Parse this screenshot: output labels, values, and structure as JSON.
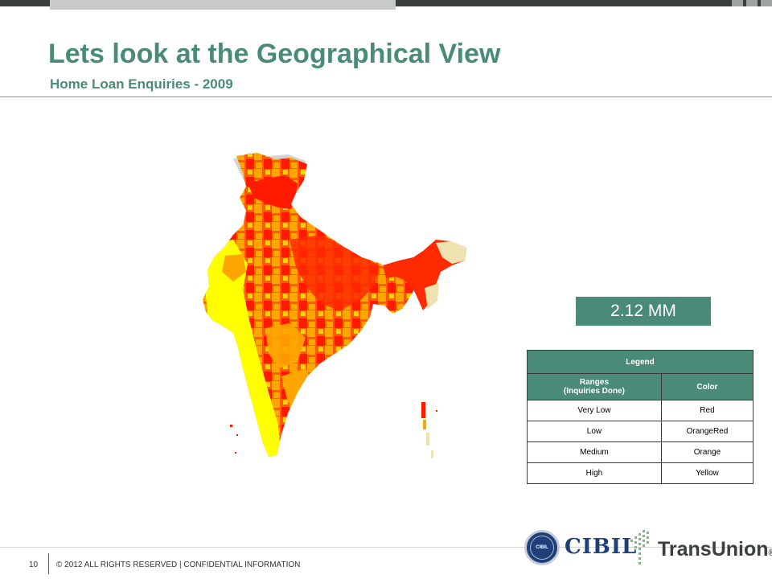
{
  "header": {
    "title": "Lets look at the Geographical View",
    "subtitle": "Home Loan Enquiries - 2009"
  },
  "stat": {
    "value": "2.12 MM"
  },
  "legend": {
    "title": "Legend",
    "col_range_line1": "Ranges",
    "col_range_line2": "(Inquiries Done)",
    "col_color": "Color",
    "rows": [
      {
        "range": "Very Low",
        "color": "Red"
      },
      {
        "range": "Low",
        "color": "OrangeRed"
      },
      {
        "range": "Medium",
        "color": "Orange"
      },
      {
        "range": "High",
        "color": "Yellow"
      }
    ]
  },
  "map_colors": {
    "very_low": "#ff1a00",
    "low": "#ff5a00",
    "medium": "#ffa500",
    "high": "#ffff00",
    "no_data": "#d4d4d4",
    "northeast_light": "#ede2b0"
  },
  "footer": {
    "page_number": "10",
    "copyright": "© 2012 ALL RIGHTS RESERVED | CONFIDENTIAL INFORMATION"
  },
  "logos": {
    "cibil_seal_text": "CIBIL",
    "cibil": "CIBIL",
    "transunion_trans": "Trans",
    "transunion_union": "Union",
    "transunion_mark": "®"
  },
  "brand": {
    "accent": "#4a8a78"
  }
}
